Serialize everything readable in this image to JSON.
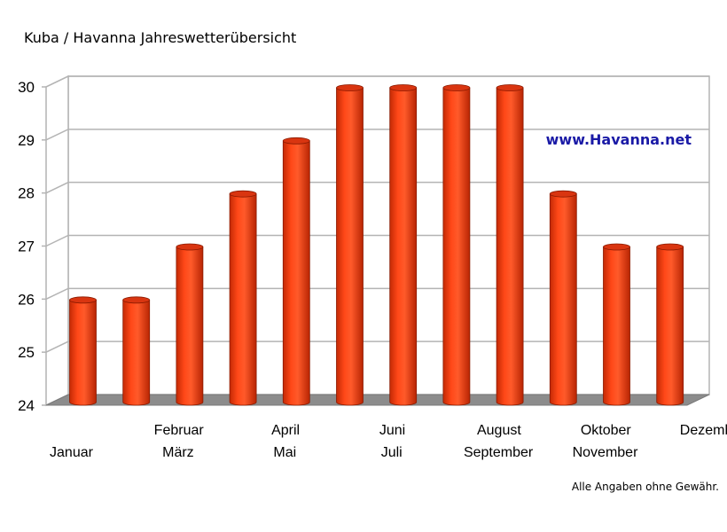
{
  "chart_data": {
    "type": "bar",
    "title": "Kuba / Havanna Jahreswetterübersicht",
    "categories": [
      "Januar",
      "Februar",
      "März",
      "April",
      "Mai",
      "Juni",
      "Juli",
      "August",
      "September",
      "Oktober",
      "November",
      "Dezember"
    ],
    "values": [
      26,
      26,
      27,
      28,
      29,
      30,
      30,
      30,
      30,
      28,
      27,
      27
    ],
    "ylim": [
      24,
      30
    ],
    "yticks": [
      "24",
      "25",
      "26",
      "27",
      "28",
      "29",
      "30"
    ],
    "grid": true,
    "bar_color": "#ff3f12",
    "annotation": "www.Havanna.net"
  },
  "footer": {
    "disclaimer": "Alle Angaben ohne Gewähr."
  }
}
